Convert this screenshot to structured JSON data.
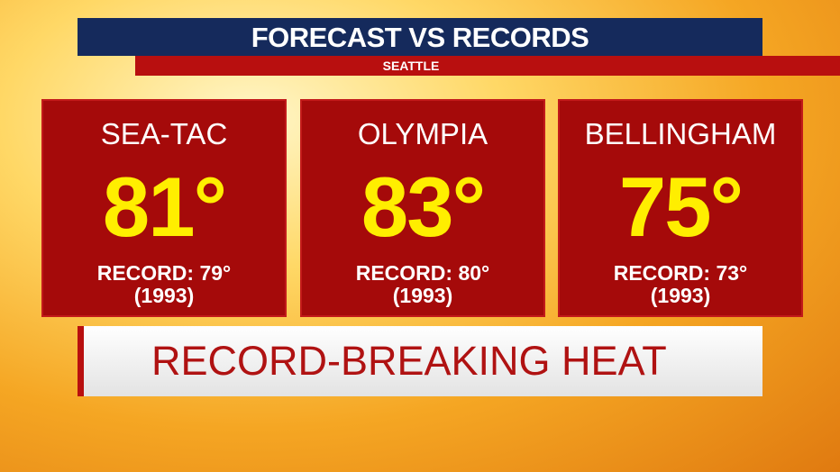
{
  "header": {
    "title": "FORECAST VS RECORDS",
    "subtitle": "SEATTLE"
  },
  "cards": [
    {
      "location": "SEA-TAC",
      "forecast": "81°",
      "record": "RECORD: 79°",
      "year": "(1993)"
    },
    {
      "location": "OLYMPIA",
      "forecast": "83°",
      "record": "RECORD: 80°",
      "year": "(1993)"
    },
    {
      "location": "BELLINGHAM",
      "forecast": "75°",
      "record": "RECORD: 73°",
      "year": "(1993)"
    }
  ],
  "banner": {
    "text": "RECORD-BREAKING HEAT"
  }
}
